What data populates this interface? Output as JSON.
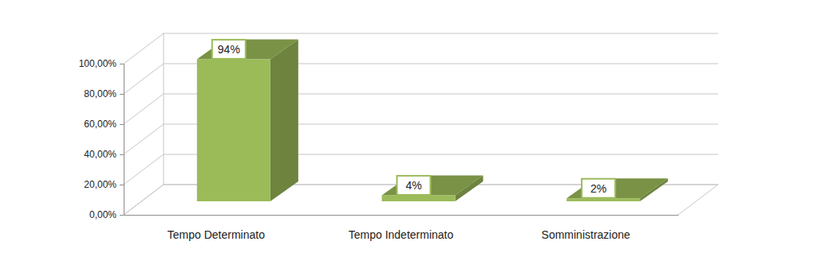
{
  "chart_data": {
    "type": "bar",
    "categories": [
      "Tempo Determinato",
      "Tempo Indeterminato",
      "Somministrazione"
    ],
    "values": [
      94,
      4,
      2
    ],
    "value_labels": [
      "94%",
      "4%",
      "2%"
    ],
    "color": "#9bbb59",
    "ylim": [
      0,
      100
    ],
    "yticks": [
      {
        "value": 0,
        "label": "0,00%"
      },
      {
        "value": 20,
        "label": "20,00%"
      },
      {
        "value": 40,
        "label": "40,00%"
      },
      {
        "value": 60,
        "label": "60,00%"
      },
      {
        "value": 80,
        "label": "80,00%"
      },
      {
        "value": 100,
        "label": "100,00%"
      }
    ],
    "grid": true,
    "data_labels": true
  }
}
